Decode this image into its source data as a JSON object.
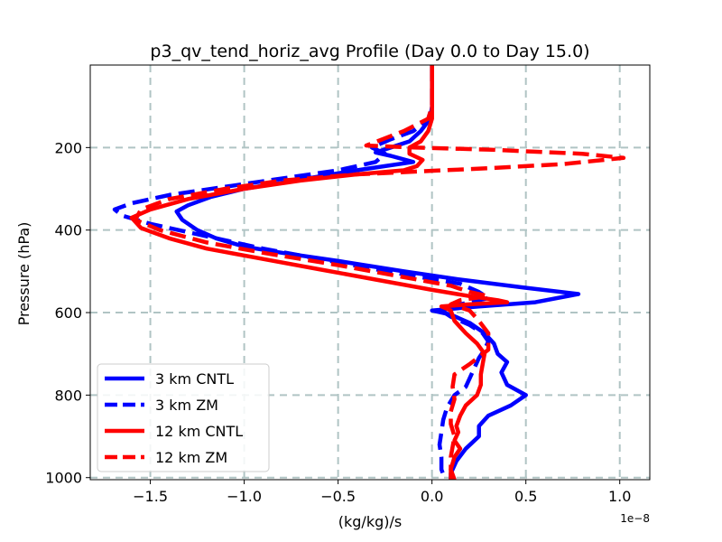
{
  "chart_data": {
    "type": "line",
    "title": "p3_qv_tend_horiz_avg Profile (Day 0.0 to Day 15.0)",
    "xlabel": "(kg/kg)/s",
    "ylabel": "Pressure (hPa)",
    "x_offset_text": "1e−8",
    "xlim": [
      -1.82,
      1.16
    ],
    "ylim": [
      1005,
      0
    ],
    "xticks": [
      -1.5,
      -1.0,
      -0.5,
      0.0,
      0.5,
      1.0
    ],
    "xtick_labels": [
      "−1.5",
      "−1.0",
      "−0.5",
      "0.0",
      "0.5",
      "1.0"
    ],
    "yticks": [
      200,
      400,
      600,
      800,
      1000
    ],
    "ytick_labels": [
      "200",
      "400",
      "600",
      "800",
      "1000"
    ],
    "grid": true,
    "legend_position": "lower-left",
    "series": [
      {
        "name": "3 km CNTL",
        "color": "#0000ff",
        "style": "solid",
        "points": [
          [
            0.0,
            0
          ],
          [
            0.0,
            60
          ],
          [
            0.0,
            100
          ],
          [
            -0.01,
            130
          ],
          [
            -0.06,
            160
          ],
          [
            -0.12,
            185
          ],
          [
            -0.22,
            200
          ],
          [
            -0.3,
            212
          ],
          [
            -0.22,
            220
          ],
          [
            -0.1,
            235
          ],
          [
            -0.25,
            245
          ],
          [
            -0.4,
            255
          ],
          [
            -0.6,
            270
          ],
          [
            -0.8,
            285
          ],
          [
            -1.0,
            300
          ],
          [
            -1.18,
            320
          ],
          [
            -1.3,
            340
          ],
          [
            -1.36,
            355
          ],
          [
            -1.33,
            375
          ],
          [
            -1.25,
            400
          ],
          [
            -1.15,
            420
          ],
          [
            -1.0,
            440
          ],
          [
            -0.8,
            455
          ],
          [
            -0.5,
            475
          ],
          [
            -0.15,
            500
          ],
          [
            0.15,
            520
          ],
          [
            0.5,
            540
          ],
          [
            0.78,
            555
          ],
          [
            0.55,
            575
          ],
          [
            0.25,
            585
          ],
          [
            0.0,
            595
          ],
          [
            0.1,
            605
          ],
          [
            0.2,
            625
          ],
          [
            0.28,
            650
          ],
          [
            0.33,
            675
          ],
          [
            0.35,
            700
          ],
          [
            0.4,
            720
          ],
          [
            0.37,
            745
          ],
          [
            0.4,
            775
          ],
          [
            0.5,
            800
          ],
          [
            0.42,
            825
          ],
          [
            0.3,
            850
          ],
          [
            0.25,
            875
          ],
          [
            0.25,
            900
          ],
          [
            0.18,
            930
          ],
          [
            0.13,
            960
          ],
          [
            0.1,
            990
          ],
          [
            0.1,
            1005
          ]
        ]
      },
      {
        "name": "3 km ZM",
        "color": "#0000ff",
        "style": "dashed",
        "points": [
          [
            0.0,
            0
          ],
          [
            0.0,
            100
          ],
          [
            -0.02,
            130
          ],
          [
            -0.1,
            160
          ],
          [
            -0.22,
            180
          ],
          [
            -0.32,
            200
          ],
          [
            -0.25,
            215
          ],
          [
            -0.3,
            235
          ],
          [
            -0.5,
            255
          ],
          [
            -0.8,
            275
          ],
          [
            -1.1,
            295
          ],
          [
            -1.4,
            315
          ],
          [
            -1.6,
            335
          ],
          [
            -1.69,
            350
          ],
          [
            -1.65,
            365
          ],
          [
            -1.5,
            385
          ],
          [
            -1.3,
            405
          ],
          [
            -1.1,
            425
          ],
          [
            -0.9,
            445
          ],
          [
            -0.6,
            470
          ],
          [
            -0.3,
            495
          ],
          [
            -0.05,
            515
          ],
          [
            0.15,
            530
          ],
          [
            0.25,
            550
          ],
          [
            0.3,
            565
          ],
          [
            0.15,
            580
          ],
          [
            0.05,
            595
          ],
          [
            0.1,
            610
          ],
          [
            0.2,
            630
          ],
          [
            0.27,
            650
          ],
          [
            0.3,
            670
          ],
          [
            0.28,
            690
          ],
          [
            0.25,
            710
          ],
          [
            0.22,
            740
          ],
          [
            0.2,
            760
          ],
          [
            0.18,
            780
          ],
          [
            0.12,
            800
          ],
          [
            0.08,
            830
          ],
          [
            0.06,
            860
          ],
          [
            0.05,
            890
          ],
          [
            0.04,
            920
          ],
          [
            0.05,
            950
          ],
          [
            0.05,
            980
          ],
          [
            0.07,
            1005
          ]
        ]
      },
      {
        "name": "12 km CNTL",
        "color": "#ff0000",
        "style": "solid",
        "points": [
          [
            0.0,
            0
          ],
          [
            0.0,
            100
          ],
          [
            0.0,
            130
          ],
          [
            -0.02,
            160
          ],
          [
            -0.06,
            185
          ],
          [
            -0.12,
            200
          ],
          [
            -0.12,
            215
          ],
          [
            -0.05,
            230
          ],
          [
            -0.08,
            245
          ],
          [
            -0.15,
            255
          ],
          [
            -0.4,
            265
          ],
          [
            -0.7,
            280
          ],
          [
            -1.0,
            300
          ],
          [
            -1.3,
            325
          ],
          [
            -1.5,
            350
          ],
          [
            -1.6,
            370
          ],
          [
            -1.55,
            395
          ],
          [
            -1.4,
            420
          ],
          [
            -1.2,
            445
          ],
          [
            -0.9,
            470
          ],
          [
            -0.6,
            495
          ],
          [
            -0.3,
            520
          ],
          [
            0.0,
            545
          ],
          [
            0.2,
            560
          ],
          [
            0.35,
            570
          ],
          [
            0.4,
            575
          ],
          [
            0.2,
            580
          ],
          [
            0.05,
            585
          ],
          [
            0.1,
            595
          ],
          [
            0.12,
            620
          ],
          [
            0.18,
            650
          ],
          [
            0.24,
            675
          ],
          [
            0.28,
            700
          ],
          [
            0.27,
            725
          ],
          [
            0.26,
            750
          ],
          [
            0.26,
            775
          ],
          [
            0.24,
            800
          ],
          [
            0.18,
            825
          ],
          [
            0.15,
            850
          ],
          [
            0.13,
            875
          ],
          [
            0.14,
            890
          ],
          [
            0.12,
            910
          ],
          [
            0.15,
            930
          ],
          [
            0.12,
            950
          ],
          [
            0.1,
            980
          ],
          [
            0.12,
            1005
          ]
        ]
      },
      {
        "name": "12 km ZM",
        "color": "#ff0000",
        "style": "dashed",
        "points": [
          [
            0.0,
            0
          ],
          [
            0.0,
            100
          ],
          [
            -0.02,
            130
          ],
          [
            -0.15,
            160
          ],
          [
            -0.35,
            195
          ],
          [
            -0.1,
            200
          ],
          [
            0.3,
            205
          ],
          [
            0.8,
            215
          ],
          [
            1.02,
            225
          ],
          [
            0.7,
            240
          ],
          [
            0.3,
            250
          ],
          [
            -0.4,
            265
          ],
          [
            -0.8,
            280
          ],
          [
            -1.1,
            300
          ],
          [
            -1.4,
            325
          ],
          [
            -1.55,
            350
          ],
          [
            -1.58,
            375
          ],
          [
            -1.45,
            400
          ],
          [
            -1.2,
            430
          ],
          [
            -0.9,
            455
          ],
          [
            -0.5,
            485
          ],
          [
            -0.2,
            510
          ],
          [
            0.1,
            535
          ],
          [
            0.2,
            550
          ],
          [
            0.3,
            560
          ],
          [
            0.15,
            570
          ],
          [
            0.1,
            580
          ],
          [
            0.2,
            595
          ],
          [
            0.25,
            620
          ],
          [
            0.3,
            650
          ],
          [
            0.3,
            690
          ],
          [
            0.2,
            725
          ],
          [
            0.12,
            750
          ],
          [
            0.11,
            780
          ],
          [
            0.12,
            810
          ],
          [
            0.1,
            840
          ],
          [
            0.1,
            870
          ],
          [
            0.12,
            900
          ],
          [
            0.1,
            950
          ],
          [
            0.1,
            1005
          ]
        ]
      }
    ]
  }
}
